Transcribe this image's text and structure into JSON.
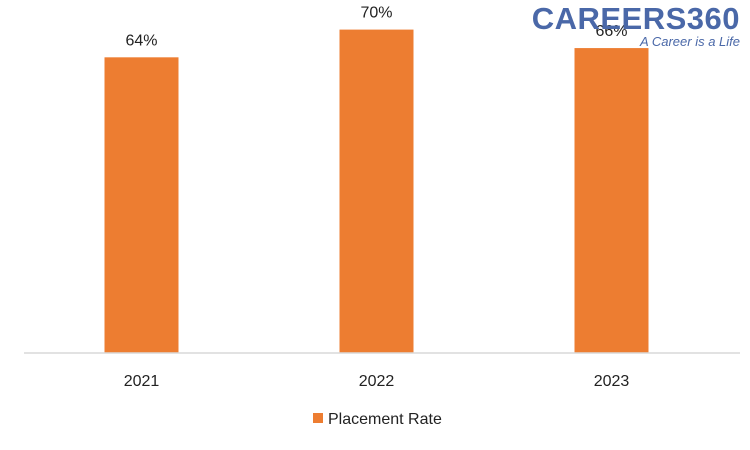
{
  "brand": {
    "name": "CAREERS360",
    "tagline": "A Career is a Life",
    "color": "#4a68a8"
  },
  "chart_data": {
    "type": "bar",
    "categories": [
      "2021",
      "2022",
      "2023"
    ],
    "series": [
      {
        "name": "Placement Rate",
        "values": [
          64,
          70,
          66
        ],
        "labels": [
          "64%",
          "70%",
          "66%"
        ],
        "color": "#ed7d31"
      }
    ],
    "title": "",
    "xlabel": "",
    "ylabel": "",
    "legend": "bottom",
    "grid": false
  }
}
